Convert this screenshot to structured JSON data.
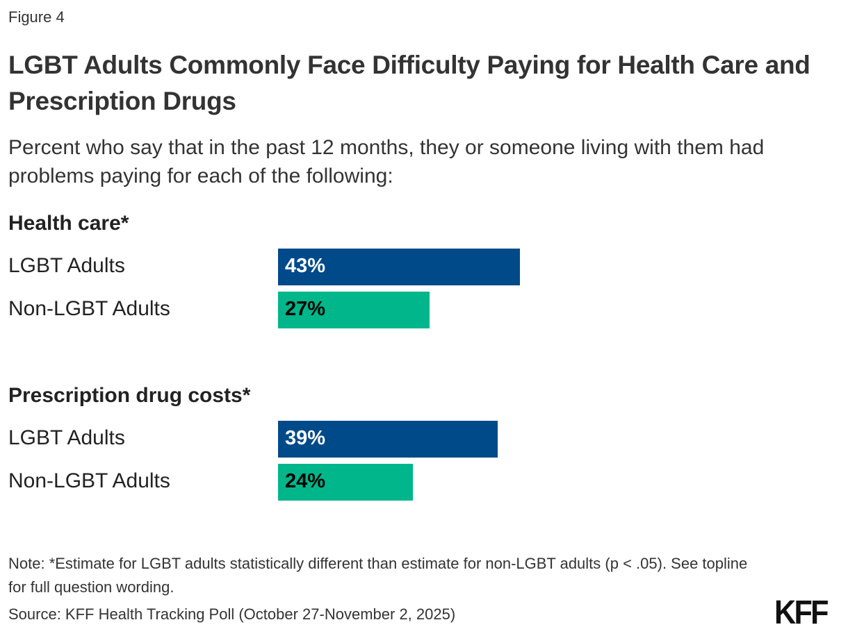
{
  "figure_label": "Figure 4",
  "logo": "KFF",
  "chart_data": {
    "type": "bar",
    "orientation": "horizontal",
    "title": "LGBT Adults Commonly Face Difficulty Paying for Health Care and Prescription Drugs",
    "subtitle": "Percent who say that in the past 12 months, they or someone living with them had problems paying for each of the following:",
    "xlim": [
      0,
      100
    ],
    "grid": false,
    "unit": "%",
    "colors": {
      "LGBT Adults": "#004a8a",
      "Non-LGBT Adults": "#00b68a"
    },
    "groups": [
      {
        "title": "Health care*",
        "rows": [
          {
            "label": "LGBT Adults",
            "value": 43,
            "display": "43%"
          },
          {
            "label": "Non-LGBT Adults",
            "value": 27,
            "display": "27%"
          }
        ]
      },
      {
        "title": "Prescription drug costs*",
        "rows": [
          {
            "label": "LGBT Adults",
            "value": 39,
            "display": "39%"
          },
          {
            "label": "Non-LGBT Adults",
            "value": 24,
            "display": "24%"
          }
        ]
      }
    ]
  },
  "note": "Note: *Estimate for LGBT adults statistically different than estimate for non-LGBT adults (p < .05). See topline for full question wording.",
  "source": "Source: KFF Health Tracking Poll (October 27-November 2, 2025)"
}
